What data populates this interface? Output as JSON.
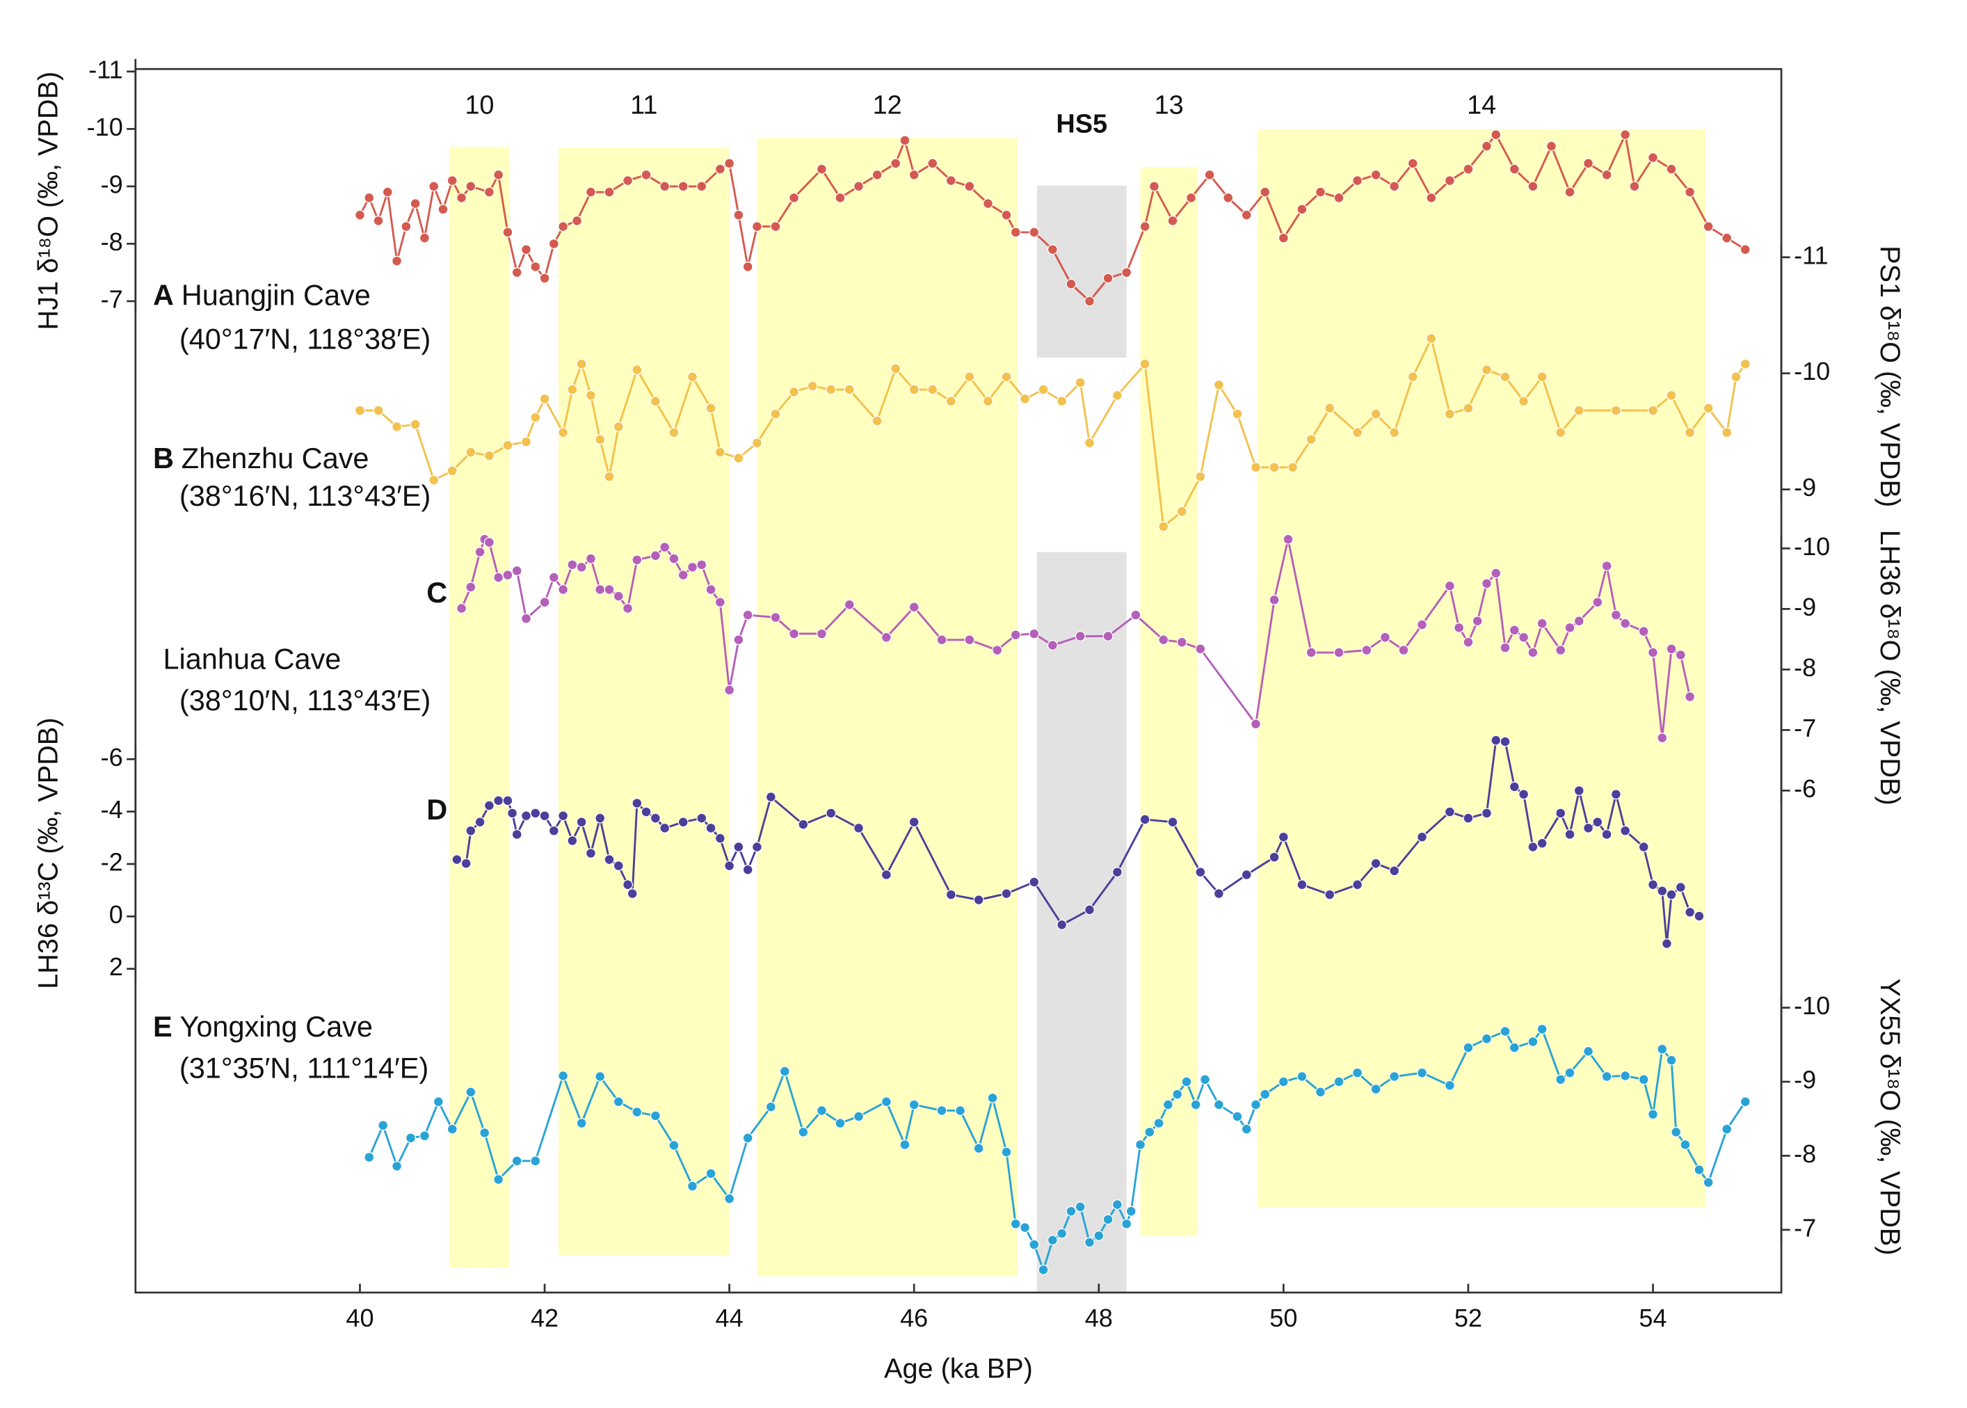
{
  "chart_data": {
    "type": "line",
    "x_label": "Age (ka BP)",
    "xlim": [
      37.57,
      55.39
    ],
    "xticks": [
      40,
      42,
      44,
      46,
      48,
      50,
      52,
      54
    ],
    "bands": [
      {
        "label": "10",
        "range": [
          40.97,
          41.62
        ],
        "color": "#ffffbf"
      },
      {
        "label": "11",
        "range": [
          42.15,
          44.0
        ],
        "color": "#ffffbf"
      },
      {
        "label": "12",
        "range": [
          44.3,
          47.12
        ],
        "color": "#ffffbf"
      },
      {
        "label": "HS5",
        "range": [
          47.33,
          48.3
        ],
        "color": "#e2e2e2"
      },
      {
        "label": "13",
        "range": [
          48.45,
          49.07
        ],
        "color": "#ffffbf"
      },
      {
        "label": "14",
        "range": [
          49.72,
          54.57
        ],
        "color": "#ffffbf"
      }
    ],
    "series": [
      {
        "letter": "A",
        "name": "Huangjin Cave",
        "location": "(40°17′N, 118°38′E)",
        "axis_label": "HJ1 δ¹⁸O (‰, VPDB)",
        "axis": "left",
        "color": "#d45a4f",
        "ylim": [
          -11,
          -7
        ],
        "yticks": [
          -11,
          -10,
          -9,
          -8,
          -7
        ],
        "x": [
          40.0,
          40.1,
          40.2,
          40.3,
          40.4,
          40.5,
          40.6,
          40.7,
          40.8,
          40.9,
          41.0,
          41.1,
          41.2,
          41.4,
          41.5,
          41.6,
          41.7,
          41.8,
          41.9,
          42.0,
          42.1,
          42.2,
          42.35,
          42.5,
          42.7,
          42.9,
          43.1,
          43.3,
          43.5,
          43.7,
          43.9,
          44.0,
          44.1,
          44.2,
          44.3,
          44.5,
          44.7,
          45.0,
          45.2,
          45.4,
          45.6,
          45.8,
          45.9,
          46.0,
          46.2,
          46.4,
          46.6,
          46.8,
          47.0,
          47.1,
          47.3,
          47.5,
          47.7,
          47.9,
          48.1,
          48.3,
          48.5,
          48.6,
          48.8,
          49.0,
          49.2,
          49.4,
          49.6,
          49.8,
          50.0,
          50.2,
          50.4,
          50.6,
          50.8,
          51.0,
          51.2,
          51.4,
          51.6,
          51.8,
          52.0,
          52.2,
          52.3,
          52.5,
          52.7,
          52.9,
          53.1,
          53.3,
          53.5,
          53.7,
          53.8,
          54.0,
          54.2,
          54.4,
          54.6,
          54.8,
          55.0
        ],
        "values": [
          -8.5,
          -8.8,
          -8.4,
          -8.9,
          -7.7,
          -8.3,
          -8.7,
          -8.1,
          -9.0,
          -8.6,
          -9.1,
          -8.8,
          -9.0,
          -8.9,
          -9.2,
          -8.2,
          -7.5,
          -7.9,
          -7.6,
          -7.4,
          -8.0,
          -8.3,
          -8.4,
          -8.9,
          -8.9,
          -9.1,
          -9.2,
          -9.0,
          -9.0,
          -9.0,
          -9.3,
          -9.4,
          -8.5,
          -7.6,
          -8.3,
          -8.3,
          -8.8,
          -9.3,
          -8.8,
          -9.0,
          -9.2,
          -9.4,
          -9.8,
          -9.2,
          -9.4,
          -9.1,
          -9.0,
          -8.7,
          -8.5,
          -8.2,
          -8.2,
          -7.9,
          -7.3,
          -7.0,
          -7.4,
          -7.5,
          -8.3,
          -9.0,
          -8.4,
          -8.8,
          -9.2,
          -8.8,
          -8.5,
          -8.9,
          -8.1,
          -8.6,
          -8.9,
          -8.8,
          -9.1,
          -9.2,
          -9.0,
          -9.4,
          -8.8,
          -9.1,
          -9.3,
          -9.7,
          -9.9,
          -9.3,
          -9.0,
          -9.7,
          -8.9,
          -9.4,
          -9.2,
          -9.9,
          -9.0,
          -9.5,
          -9.3,
          -8.9,
          -8.3,
          -8.1,
          -7.9
        ]
      },
      {
        "letter": "B",
        "name": "Zhenzhu Cave",
        "location": "(38°16′N, 113°43′E)",
        "axis_label": "PS1 δ¹⁸O (‰, VPDB)",
        "axis": "right",
        "color": "#f2c14e",
        "ylim": [
          -11,
          -9
        ],
        "yticks": [
          -11,
          -10,
          -9
        ],
        "x": [
          40.0,
          40.2,
          40.4,
          40.6,
          40.8,
          41.0,
          41.2,
          41.4,
          41.6,
          41.8,
          41.9,
          42.0,
          42.2,
          42.3,
          42.4,
          42.5,
          42.6,
          42.7,
          42.8,
          43.0,
          43.2,
          43.4,
          43.6,
          43.8,
          43.9,
          44.1,
          44.3,
          44.5,
          44.7,
          44.9,
          45.1,
          45.3,
          45.6,
          45.8,
          46.0,
          46.2,
          46.4,
          46.6,
          46.8,
          47.0,
          47.2,
          47.4,
          47.6,
          47.8,
          47.9,
          48.2,
          48.5,
          48.7,
          48.9,
          49.1,
          49.3,
          49.5,
          49.7,
          49.9,
          50.1,
          50.3,
          50.5,
          50.8,
          51.0,
          51.2,
          51.4,
          51.6,
          51.8,
          52.0,
          52.2,
          52.4,
          52.6,
          52.8,
          53.0,
          53.2,
          53.6,
          54.0,
          54.2,
          54.4,
          54.6,
          54.8,
          54.9,
          55.0
        ],
        "values": [
          -9.68,
          -9.68,
          -9.54,
          -9.56,
          -9.08,
          -9.16,
          -9.32,
          -9.29,
          -9.38,
          -9.41,
          -9.62,
          -9.78,
          -9.49,
          -9.86,
          -10.08,
          -9.81,
          -9.43,
          -9.11,
          -9.54,
          -10.03,
          -9.76,
          -9.49,
          -9.97,
          -9.7,
          -9.32,
          -9.27,
          -9.4,
          -9.65,
          -9.84,
          -9.89,
          -9.86,
          -9.86,
          -9.59,
          -10.04,
          -9.86,
          -9.86,
          -9.76,
          -9.97,
          -9.76,
          -9.97,
          -9.78,
          -9.86,
          -9.76,
          -9.92,
          -9.4,
          -9.81,
          -10.08,
          -8.68,
          -8.81,
          -9.11,
          -9.9,
          -9.65,
          -9.19,
          -9.19,
          -9.19,
          -9.43,
          -9.7,
          -9.49,
          -9.65,
          -9.49,
          -9.97,
          -10.3,
          -9.65,
          -9.7,
          -10.03,
          -9.97,
          -9.76,
          -9.97,
          -9.49,
          -9.68,
          -9.68,
          -9.68,
          -9.81,
          -9.49,
          -9.7,
          -9.49,
          -9.97,
          -10.08
        ]
      },
      {
        "letter": "C",
        "name": "Lianhua Cave",
        "location": "(38°10′N, 113°43′E)",
        "axis_label": "LH36 δ¹⁸O (‰, VPDB)",
        "axis": "right",
        "color": "#b45fb8",
        "ylim": [
          -10,
          -6
        ],
        "yticks": [
          -10,
          -9,
          -8,
          -7,
          -6
        ],
        "x": [
          41.1,
          41.2,
          41.3,
          41.35,
          41.4,
          41.5,
          41.6,
          41.7,
          41.8,
          42.0,
          42.1,
          42.2,
          42.3,
          42.4,
          42.5,
          42.6,
          42.7,
          42.8,
          42.9,
          43.0,
          43.2,
          43.3,
          43.4,
          43.5,
          43.6,
          43.7,
          43.8,
          43.9,
          44.0,
          44.1,
          44.2,
          44.5,
          44.7,
          45.0,
          45.3,
          45.7,
          46.0,
          46.3,
          46.6,
          46.9,
          47.1,
          47.3,
          47.5,
          47.8,
          48.1,
          48.4,
          48.7,
          48.9,
          49.1,
          49.7,
          49.9,
          50.05,
          50.3,
          50.6,
          50.9,
          51.1,
          51.3,
          51.5,
          51.8,
          51.9,
          52.0,
          52.1,
          52.2,
          52.3,
          52.4,
          52.5,
          52.6,
          52.7,
          52.8,
          53.0,
          53.1,
          53.2,
          53.4,
          53.5,
          53.6,
          53.7,
          53.9,
          54.0,
          54.1,
          54.2,
          54.3,
          54.4
        ],
        "values": [
          -9.01,
          -9.36,
          -9.94,
          -10.15,
          -10.1,
          -9.52,
          -9.56,
          -9.63,
          -8.84,
          -9.11,
          -9.52,
          -9.32,
          -9.73,
          -9.69,
          -9.83,
          -9.32,
          -9.32,
          -9.21,
          -9.01,
          -9.81,
          -9.88,
          -10.02,
          -9.83,
          -9.56,
          -9.69,
          -9.73,
          -9.32,
          -9.11,
          -7.66,
          -8.49,
          -8.9,
          -8.86,
          -8.59,
          -8.59,
          -9.07,
          -8.53,
          -9.03,
          -8.49,
          -8.49,
          -8.32,
          -8.57,
          -8.59,
          -8.4,
          -8.55,
          -8.55,
          -8.9,
          -8.49,
          -8.45,
          -8.34,
          -7.1,
          -9.15,
          -10.15,
          -8.28,
          -8.28,
          -8.32,
          -8.53,
          -8.32,
          -8.74,
          -9.38,
          -8.69,
          -8.45,
          -8.8,
          -9.42,
          -9.59,
          -8.36,
          -8.65,
          -8.53,
          -8.28,
          -8.76,
          -8.32,
          -8.69,
          -8.8,
          -9.11,
          -9.71,
          -8.9,
          -8.76,
          -8.63,
          -8.28,
          -6.87,
          -8.34,
          -8.24,
          -7.55
        ]
      },
      {
        "letter": "D",
        "axis_label": "LH36 δ¹³C (‰, VPDB)",
        "axis": "left",
        "color": "#4b3f99",
        "ylim": [
          -6,
          2
        ],
        "yticks": [
          -6,
          -4,
          -2,
          0,
          2
        ],
        "x": [
          41.05,
          41.15,
          41.2,
          41.3,
          41.4,
          41.5,
          41.6,
          41.65,
          41.7,
          41.8,
          41.9,
          42.0,
          42.1,
          42.2,
          42.3,
          42.4,
          42.5,
          42.6,
          42.7,
          42.8,
          42.9,
          42.95,
          43.0,
          43.1,
          43.2,
          43.3,
          43.5,
          43.7,
          43.8,
          43.9,
          44.0,
          44.1,
          44.2,
          44.3,
          44.45,
          44.8,
          45.1,
          45.4,
          45.7,
          46.0,
          46.4,
          46.7,
          47.0,
          47.3,
          47.6,
          47.9,
          48.2,
          48.5,
          48.8,
          49.1,
          49.3,
          49.6,
          49.9,
          50.0,
          50.2,
          50.5,
          50.8,
          51.0,
          51.2,
          51.5,
          51.8,
          52.0,
          52.2,
          52.3,
          52.4,
          52.5,
          52.6,
          52.7,
          52.8,
          53.0,
          53.1,
          53.2,
          53.3,
          53.4,
          53.5,
          53.6,
          53.7,
          53.9,
          54.0,
          54.1,
          54.15,
          54.2,
          54.3,
          54.4,
          54.5
        ],
        "values": [
          -2.17,
          -2.02,
          -3.27,
          -3.6,
          -4.23,
          -4.42,
          -4.42,
          -3.94,
          -3.13,
          -3.84,
          -3.94,
          -3.84,
          -3.27,
          -3.84,
          -2.89,
          -3.6,
          -2.41,
          -3.75,
          -2.17,
          -1.93,
          -1.21,
          -0.87,
          -4.32,
          -3.99,
          -3.75,
          -3.37,
          -3.6,
          -3.75,
          -3.37,
          -2.98,
          -1.93,
          -2.65,
          -1.78,
          -2.65,
          -4.56,
          -3.51,
          -3.94,
          -3.37,
          -1.59,
          -3.6,
          -0.83,
          -0.63,
          -0.87,
          -1.31,
          0.32,
          -0.25,
          -1.69,
          -3.7,
          -3.6,
          -1.69,
          -0.87,
          -1.59,
          -2.26,
          -3.03,
          -1.21,
          -0.83,
          -1.21,
          -2.02,
          -1.74,
          -3.03,
          -3.99,
          -3.75,
          -3.94,
          -6.72,
          -6.67,
          -4.95,
          -4.66,
          -2.65,
          -2.79,
          -3.94,
          -3.13,
          -4.8,
          -3.37,
          -3.6,
          -3.13,
          -4.66,
          -3.27,
          -2.65,
          -1.21,
          -0.97,
          1.04,
          -0.83,
          -1.11,
          -0.16,
          -0.01
        ]
      },
      {
        "letter": "E",
        "name": "Yongxing Cave",
        "location": "(31°35′N, 111°14′E)",
        "axis_label": "YX55 δ¹⁸O (‰, VPDB)",
        "axis": "right",
        "color": "#29a3d6",
        "ylim": [
          -10,
          -7
        ],
        "yticks": [
          -10,
          -9,
          -8,
          -7
        ],
        "x": [
          40.1,
          40.25,
          40.4,
          40.55,
          40.7,
          40.85,
          41.0,
          41.2,
          41.35,
          41.5,
          41.7,
          41.9,
          42.2,
          42.4,
          42.6,
          42.8,
          43.0,
          43.2,
          43.4,
          43.6,
          43.8,
          44.0,
          44.2,
          44.45,
          44.6,
          44.8,
          45.0,
          45.2,
          45.4,
          45.7,
          45.9,
          46.0,
          46.3,
          46.5,
          46.7,
          46.85,
          47.0,
          47.1,
          47.2,
          47.3,
          47.4,
          47.5,
          47.6,
          47.7,
          47.8,
          47.9,
          48.0,
          48.1,
          48.2,
          48.3,
          48.35,
          48.45,
          48.55,
          48.65,
          48.75,
          48.85,
          48.95,
          49.05,
          49.15,
          49.3,
          49.5,
          49.6,
          49.7,
          49.8,
          50.0,
          50.2,
          50.4,
          50.6,
          50.8,
          51.0,
          51.2,
          51.5,
          51.8,
          52.0,
          52.2,
          52.4,
          52.5,
          52.7,
          52.8,
          53.0,
          53.1,
          53.3,
          53.5,
          53.7,
          53.9,
          54.0,
          54.1,
          54.2,
          54.25,
          54.35,
          54.5,
          54.6,
          54.8,
          55.0
        ],
        "values": [
          -7.98,
          -8.41,
          -7.86,
          -8.24,
          -8.27,
          -8.73,
          -8.36,
          -8.86,
          -8.31,
          -7.68,
          -7.93,
          -7.93,
          -9.08,
          -8.44,
          -9.07,
          -8.73,
          -8.59,
          -8.54,
          -8.14,
          -7.59,
          -7.76,
          -7.42,
          -8.24,
          -8.66,
          -9.14,
          -8.32,
          -8.61,
          -8.44,
          -8.53,
          -8.73,
          -8.15,
          -8.69,
          -8.61,
          -8.61,
          -8.1,
          -8.78,
          -8.05,
          -7.08,
          -7.03,
          -6.8,
          -6.46,
          -6.86,
          -6.95,
          -7.25,
          -7.31,
          -6.83,
          -6.92,
          -7.14,
          -7.34,
          -7.08,
          -7.25,
          -8.15,
          -8.32,
          -8.44,
          -8.69,
          -8.83,
          -9.0,
          -8.69,
          -9.03,
          -8.69,
          -8.53,
          -8.36,
          -8.69,
          -8.83,
          -9.0,
          -9.07,
          -8.86,
          -9.0,
          -9.12,
          -8.9,
          -9.07,
          -9.12,
          -8.95,
          -9.46,
          -9.58,
          -9.68,
          -9.46,
          -9.54,
          -9.71,
          -9.03,
          -9.12,
          -9.41,
          -9.07,
          -9.08,
          -9.03,
          -8.56,
          -9.44,
          -9.29,
          -8.32,
          -8.15,
          -7.81,
          -7.64,
          -8.36,
          -8.73
        ]
      }
    ]
  }
}
